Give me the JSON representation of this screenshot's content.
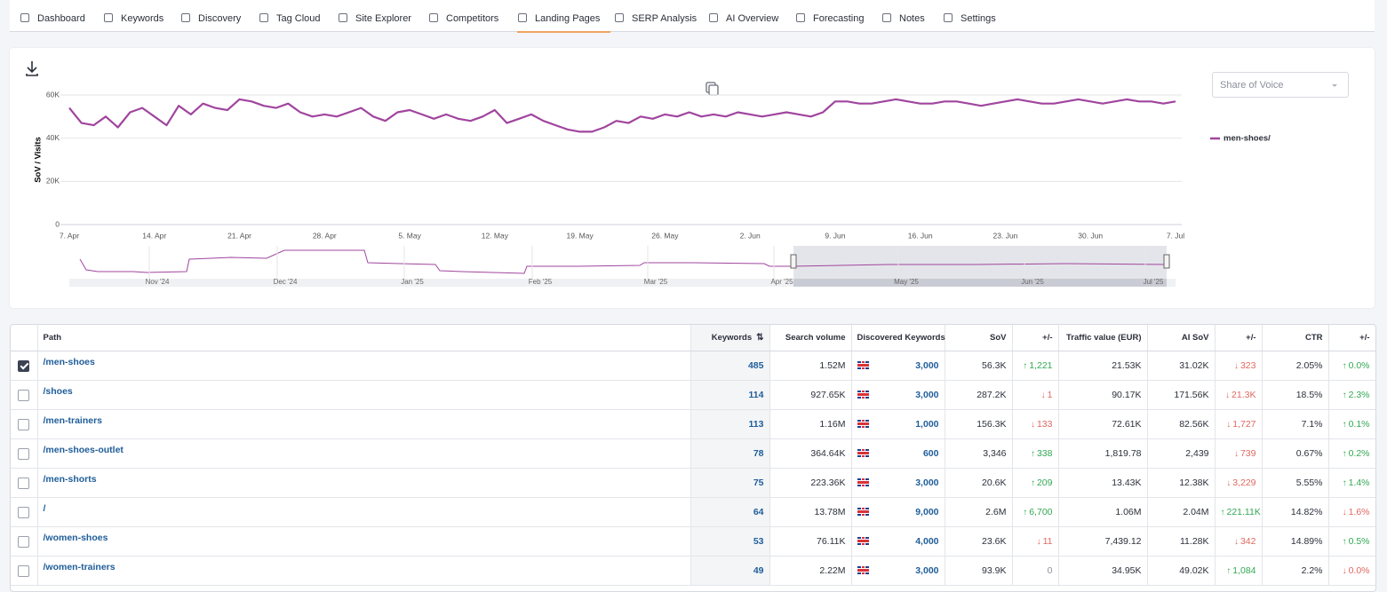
{
  "nav": {
    "tabs": [
      {
        "label": "Dashboard",
        "active": false
      },
      {
        "label": "Keywords",
        "active": false
      },
      {
        "label": "Discovery",
        "active": false
      },
      {
        "label": "Tag Cloud",
        "active": false
      },
      {
        "label": "Site Explorer",
        "active": false
      },
      {
        "label": "Competitors",
        "active": false
      },
      {
        "label": "Landing Pages",
        "active": true
      },
      {
        "label": "SERP Analysis",
        "active": false
      },
      {
        "label": "AI Overview",
        "active": false
      },
      {
        "label": "Forecasting",
        "active": false
      },
      {
        "label": "Notes",
        "active": false
      },
      {
        "label": "Settings",
        "active": false
      }
    ]
  },
  "metric_select": "Share of Voice",
  "chart_data": {
    "type": "line",
    "y_label": "SoV / Visits",
    "categories": [
      "7. Apr",
      "8. Apr",
      "9. Apr",
      "10. Apr",
      "11. Apr",
      "12. Apr",
      "13. Apr",
      "14. Apr",
      "15. Apr",
      "16. Apr",
      "17. Apr",
      "18. Apr",
      "19. Apr",
      "20. Apr",
      "21. Apr",
      "22. Apr",
      "23. Apr",
      "24. Apr",
      "25. Apr",
      "26. Apr",
      "27. Apr",
      "28. Apr",
      "29. Apr",
      "30. Apr",
      "1. May",
      "2. May",
      "3. May",
      "4. May",
      "5. May",
      "6. May",
      "7. May",
      "8. May",
      "9. May",
      "10. May",
      "11. May",
      "12. May",
      "13. May",
      "14. May",
      "15. May",
      "16. May",
      "17. May",
      "18. May",
      "19. May",
      "20. May",
      "21. May",
      "22. May",
      "23. May",
      "24. May",
      "25. May",
      "26. May",
      "27. May",
      "28. May",
      "29. May",
      "30. May",
      "31. May",
      "1. Jun",
      "2. Jun",
      "3. Jun",
      "4. Jun",
      "5. Jun",
      "6. Jun",
      "7. Jun",
      "8. Jun",
      "9. Jun",
      "10. Jun",
      "11. Jun",
      "12. Jun",
      "13. Jun",
      "14. Jun",
      "15. Jun",
      "16. Jun",
      "17. Jun",
      "18. Jun",
      "19. Jun",
      "20. Jun",
      "21. Jun",
      "22. Jun",
      "23. Jun",
      "24. Jun",
      "25. Jun",
      "26. Jun",
      "27. Jun",
      "28. Jun",
      "29. Jun",
      "30. Jun",
      "1. Jul",
      "2. Jul",
      "3. Jul",
      "4. Jul",
      "5. Jul",
      "6. Jul",
      "7. Jul"
    ],
    "series": [
      {
        "name": "men-shoes/",
        "color": "#a0459e",
        "values": [
          54000,
          47000,
          46000,
          50000,
          45000,
          52000,
          54000,
          50000,
          46000,
          55000,
          51000,
          56000,
          54000,
          53000,
          58000,
          57000,
          55000,
          54000,
          56000,
          52000,
          50000,
          51000,
          50000,
          52000,
          54000,
          50000,
          48000,
          52000,
          53000,
          51000,
          49000,
          51000,
          49000,
          48000,
          50000,
          53000,
          47000,
          49000,
          51000,
          48000,
          46000,
          44000,
          43000,
          43000,
          45000,
          48000,
          47000,
          50000,
          49000,
          51000,
          50000,
          52000,
          50000,
          51000,
          50000,
          52000,
          51000,
          50000,
          51000,
          52000,
          51000,
          50000,
          52000,
          57000,
          57000,
          56000,
          56000,
          57000,
          58000,
          57000,
          56000,
          56000,
          57000,
          57000,
          56000,
          55000,
          56000,
          57000,
          58000,
          57000,
          56000,
          56000,
          57000,
          58000,
          57000,
          56000,
          57000,
          58000,
          57000,
          57000,
          56000,
          57000
        ]
      }
    ],
    "ylim": [
      0,
      60000
    ],
    "yticks": [
      0,
      {
        "value": 20000,
        "label": "20K"
      },
      {
        "value": 40000,
        "label": "40K"
      },
      {
        "value": 60000,
        "label": "60K"
      }
    ],
    "xticks": [
      "7. Apr",
      "14. Apr",
      "21. Apr",
      "28. Apr",
      "5. May",
      "12. May",
      "19. May",
      "26. May",
      "2. Jun",
      "9. Jun",
      "16. Jun",
      "23. Jun",
      "30. Jun",
      "7. Jul"
    ],
    "grid": true,
    "legend": "right"
  },
  "navigator": {
    "labels": [
      "Nov '24",
      "Dec '24",
      "Jan '25",
      "Feb '25",
      "Mar '25",
      "Apr '25",
      "May '25",
      "Jun '25",
      "Jul '25"
    ]
  },
  "table": {
    "columns": [
      "Path",
      "Keywords",
      "Search volume",
      "Discovered Keywords",
      "SoV",
      "+/-",
      "Traffic value (EUR)",
      "AI SoV",
      "+/-",
      "CTR",
      "+/-"
    ],
    "rows": [
      {
        "checked": true,
        "path": "/men-shoes",
        "keywords": "485",
        "search_volume": "1.52M",
        "discovered": "3,000",
        "sov": "56.3K",
        "sov_change": {
          "text": "1,221",
          "dir": "up"
        },
        "traffic_value": "21.53K",
        "ai_sov": "31.02K",
        "ai_sov_change": {
          "text": "323",
          "dir": "down"
        },
        "ctr": "2.05%",
        "ctr_change": {
          "text": "0.0%",
          "dir": "up"
        }
      },
      {
        "checked": false,
        "path": "/shoes",
        "keywords": "114",
        "search_volume": "927.65K",
        "discovered": "3,000",
        "sov": "287.2K",
        "sov_change": {
          "text": "1",
          "dir": "down"
        },
        "traffic_value": "90.17K",
        "ai_sov": "171.56K",
        "ai_sov_change": {
          "text": "21.3K",
          "dir": "down"
        },
        "ctr": "18.5%",
        "ctr_change": {
          "text": "2.3%",
          "dir": "up"
        }
      },
      {
        "checked": false,
        "path": "/men-trainers",
        "keywords": "113",
        "search_volume": "1.16M",
        "discovered": "1,000",
        "sov": "156.3K",
        "sov_change": {
          "text": "133",
          "dir": "down"
        },
        "traffic_value": "72.61K",
        "ai_sov": "82.56K",
        "ai_sov_change": {
          "text": "1,727",
          "dir": "down"
        },
        "ctr": "7.1%",
        "ctr_change": {
          "text": "0.1%",
          "dir": "up"
        }
      },
      {
        "checked": false,
        "path": "/men-shoes-outlet",
        "keywords": "78",
        "search_volume": "364.64K",
        "discovered": "600",
        "sov": "3,346",
        "sov_change": {
          "text": "338",
          "dir": "up"
        },
        "traffic_value": "1,819.78",
        "ai_sov": "2,439",
        "ai_sov_change": {
          "text": "739",
          "dir": "down"
        },
        "ctr": "0.67%",
        "ctr_change": {
          "text": "0.2%",
          "dir": "up"
        }
      },
      {
        "checked": false,
        "path": "/men-shorts",
        "keywords": "75",
        "search_volume": "223.36K",
        "discovered": "3,000",
        "sov": "20.6K",
        "sov_change": {
          "text": "209",
          "dir": "up"
        },
        "traffic_value": "13.43K",
        "ai_sov": "12.38K",
        "ai_sov_change": {
          "text": "3,229",
          "dir": "down"
        },
        "ctr": "5.55%",
        "ctr_change": {
          "text": "1.4%",
          "dir": "up"
        }
      },
      {
        "checked": false,
        "path": "/",
        "keywords": "64",
        "search_volume": "13.78M",
        "discovered": "9,000",
        "sov": "2.6M",
        "sov_change": {
          "text": "6,700",
          "dir": "up"
        },
        "traffic_value": "1.06M",
        "ai_sov": "2.04M",
        "ai_sov_change": {
          "text": "221.11K",
          "dir": "up"
        },
        "ctr": "14.82%",
        "ctr_change": {
          "text": "1.6%",
          "dir": "down"
        }
      },
      {
        "checked": false,
        "path": "/women-shoes",
        "keywords": "53",
        "search_volume": "76.11K",
        "discovered": "4,000",
        "sov": "23.6K",
        "sov_change": {
          "text": "11",
          "dir": "down"
        },
        "traffic_value": "7,439.12",
        "ai_sov": "11.28K",
        "ai_sov_change": {
          "text": "342",
          "dir": "down"
        },
        "ctr": "14.89%",
        "ctr_change": {
          "text": "0.5%",
          "dir": "up"
        }
      },
      {
        "checked": false,
        "path": "/women-trainers",
        "keywords": "49",
        "search_volume": "2.22M",
        "discovered": "3,000",
        "sov": "93.9K",
        "sov_change": {
          "text": "0",
          "dir": "none"
        },
        "traffic_value": "34.95K",
        "ai_sov": "49.02K",
        "ai_sov_change": {
          "text": "1,084",
          "dir": "up"
        },
        "ctr": "2.2%",
        "ctr_change": {
          "text": "0.0%",
          "dir": "down"
        }
      }
    ]
  }
}
